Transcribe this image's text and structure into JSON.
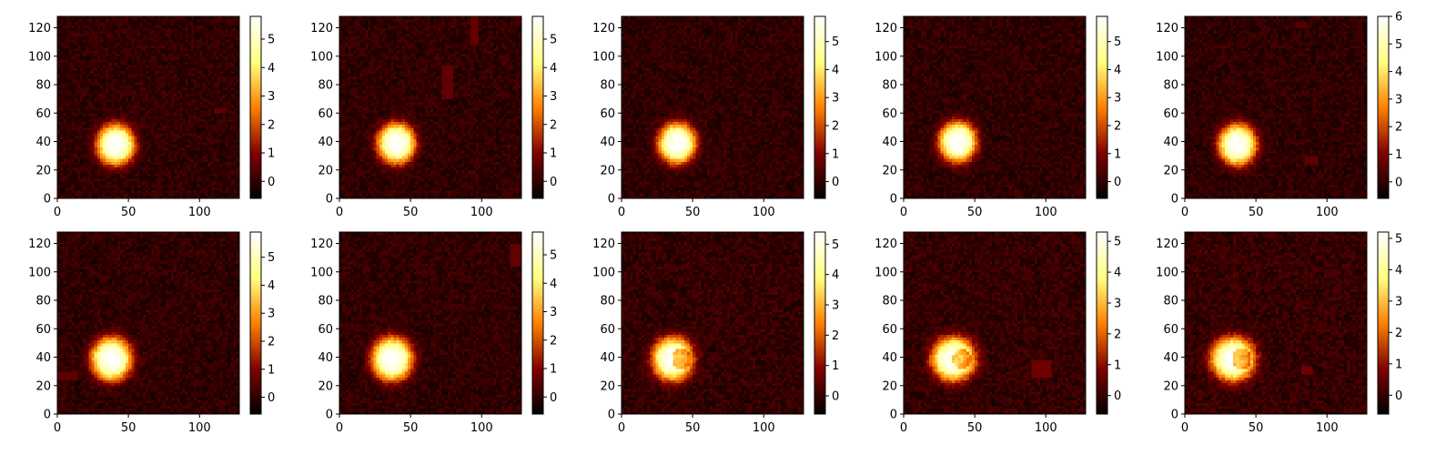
{
  "figure": {
    "rows": 2,
    "cols": 5,
    "colormap": "afmhot",
    "background": "#ffffff"
  },
  "chart_data": [
    {
      "type": "heatmap",
      "panel": 1,
      "xlim": [
        0,
        128
      ],
      "ylim": [
        0,
        128
      ],
      "x_ticks": [
        0,
        50,
        100
      ],
      "y_ticks": [
        0,
        20,
        40,
        60,
        80,
        100,
        120
      ],
      "grid": false,
      "colorbar": {
        "vmin": -0.6,
        "vmax": 5.8,
        "ticks": [
          0,
          1,
          2,
          3,
          4,
          5
        ]
      },
      "blob": {
        "cx": 41,
        "cy": 38,
        "sigma_x": 13,
        "sigma_y": 14,
        "peak": 5.8,
        "notch": false
      },
      "patches": [
        {
          "x": 110,
          "y": 60,
          "w": 7,
          "h": 4,
          "value": 0.6
        }
      ]
    },
    {
      "type": "heatmap",
      "panel": 2,
      "xlim": [
        0,
        128
      ],
      "ylim": [
        0,
        128
      ],
      "x_ticks": [
        0,
        50,
        100
      ],
      "y_ticks": [
        0,
        20,
        40,
        60,
        80,
        100,
        120
      ],
      "grid": false,
      "colorbar": {
        "vmin": -0.6,
        "vmax": 5.8,
        "ticks": [
          0,
          1,
          2,
          3,
          4,
          5
        ]
      },
      "blob": {
        "cx": 40,
        "cy": 39,
        "sigma_x": 13,
        "sigma_y": 14,
        "peak": 5.8,
        "notch": false
      },
      "patches": [
        {
          "x": 73,
          "y": 71,
          "w": 6,
          "h": 22,
          "value": 0.6
        },
        {
          "x": 93,
          "y": 109,
          "w": 4,
          "h": 18,
          "value": 0.6
        }
      ]
    },
    {
      "type": "heatmap",
      "panel": 3,
      "xlim": [
        0,
        128
      ],
      "ylim": [
        0,
        128
      ],
      "x_ticks": [
        0,
        50,
        100
      ],
      "y_ticks": [
        0,
        20,
        40,
        60,
        80,
        100,
        120
      ],
      "grid": false,
      "colorbar": {
        "vmin": -0.6,
        "vmax": 5.9,
        "ticks": [
          0,
          1,
          2,
          3,
          4,
          5
        ]
      },
      "blob": {
        "cx": 39,
        "cy": 39,
        "sigma_x": 13,
        "sigma_y": 14,
        "peak": 5.9,
        "notch": false
      },
      "patches": []
    },
    {
      "type": "heatmap",
      "panel": 4,
      "xlim": [
        0,
        128
      ],
      "ylim": [
        0,
        128
      ],
      "x_ticks": [
        0,
        50,
        100
      ],
      "y_ticks": [
        0,
        20,
        40,
        60,
        80,
        100,
        120
      ],
      "grid": false,
      "colorbar": {
        "vmin": -0.6,
        "vmax": 5.9,
        "ticks": [
          0,
          1,
          2,
          3,
          4,
          5
        ]
      },
      "blob": {
        "cx": 38,
        "cy": 40,
        "sigma_x": 13,
        "sigma_y": 14,
        "peak": 5.9,
        "notch": false
      },
      "patches": []
    },
    {
      "type": "heatmap",
      "panel": 5,
      "xlim": [
        0,
        128
      ],
      "ylim": [
        0,
        128
      ],
      "x_ticks": [
        0,
        50,
        100
      ],
      "y_ticks": [
        0,
        20,
        40,
        60,
        80,
        100,
        120
      ],
      "grid": false,
      "colorbar": {
        "vmin": -0.6,
        "vmax": 6.0,
        "ticks": [
          0,
          1,
          2,
          3,
          4,
          5,
          6
        ]
      },
      "blob": {
        "cx": 37,
        "cy": 38,
        "sigma_x": 13,
        "sigma_y": 14,
        "peak": 6.0,
        "notch": false
      },
      "patches": [
        {
          "x": 85,
          "y": 25,
          "w": 9,
          "h": 4,
          "value": 0.6
        },
        {
          "x": 78,
          "y": 120,
          "w": 8,
          "h": 4,
          "value": 0.5
        }
      ]
    },
    {
      "type": "heatmap",
      "panel": 6,
      "xlim": [
        0,
        128
      ],
      "ylim": [
        0,
        128
      ],
      "x_ticks": [
        0,
        50,
        100
      ],
      "y_ticks": [
        0,
        20,
        40,
        60,
        80,
        100,
        120
      ],
      "grid": false,
      "colorbar": {
        "vmin": -0.6,
        "vmax": 5.9,
        "ticks": [
          0,
          1,
          2,
          3,
          4,
          5
        ]
      },
      "blob": {
        "cx": 38,
        "cy": 39,
        "sigma_x": 14,
        "sigma_y": 15,
        "peak": 5.9,
        "notch": false
      },
      "patches": [
        {
          "x": 0,
          "y": 24,
          "w": 14,
          "h": 6,
          "value": 0.6
        }
      ]
    },
    {
      "type": "heatmap",
      "panel": 7,
      "xlim": [
        0,
        128
      ],
      "ylim": [
        0,
        128
      ],
      "x_ticks": [
        0,
        50,
        100
      ],
      "y_ticks": [
        0,
        20,
        40,
        60,
        80,
        100,
        120
      ],
      "grid": false,
      "colorbar": {
        "vmin": -0.6,
        "vmax": 5.8,
        "ticks": [
          0,
          1,
          2,
          3,
          4,
          5
        ]
      },
      "blob": {
        "cx": 37,
        "cy": 39,
        "sigma_x": 14,
        "sigma_y": 15,
        "peak": 5.8,
        "notch": false
      },
      "patches": [
        {
          "x": 120,
          "y": 105,
          "w": 8,
          "h": 15,
          "value": 0.6
        }
      ]
    },
    {
      "type": "heatmap",
      "panel": 8,
      "xlim": [
        0,
        128
      ],
      "ylim": [
        0,
        128
      ],
      "x_ticks": [
        0,
        50,
        100
      ],
      "y_ticks": [
        0,
        20,
        40,
        60,
        80,
        100,
        120
      ],
      "grid": false,
      "colorbar": {
        "vmin": -0.6,
        "vmax": 5.4,
        "ticks": [
          0,
          1,
          2,
          3,
          4,
          5
        ]
      },
      "blob": {
        "cx": 36,
        "cy": 39,
        "sigma_x": 14,
        "sigma_y": 15,
        "peak": 5.4,
        "notch": true
      },
      "patches": []
    },
    {
      "type": "heatmap",
      "panel": 9,
      "xlim": [
        0,
        128
      ],
      "ylim": [
        0,
        128
      ],
      "x_ticks": [
        0,
        50,
        100
      ],
      "y_ticks": [
        0,
        20,
        40,
        60,
        80,
        100,
        120
      ],
      "grid": false,
      "colorbar": {
        "vmin": -0.6,
        "vmax": 5.3,
        "ticks": [
          0,
          1,
          2,
          3,
          4,
          5
        ]
      },
      "blob": {
        "cx": 35,
        "cy": 39,
        "sigma_x": 15,
        "sigma_y": 15,
        "peak": 5.3,
        "notch": true
      },
      "patches": [
        {
          "x": 91,
          "y": 27,
          "w": 12,
          "h": 10,
          "value": 0.7
        }
      ]
    },
    {
      "type": "heatmap",
      "panel": 10,
      "xlim": [
        0,
        128
      ],
      "ylim": [
        0,
        128
      ],
      "x_ticks": [
        0,
        50,
        100
      ],
      "y_ticks": [
        0,
        20,
        40,
        60,
        80,
        100,
        120
      ],
      "grid": false,
      "colorbar": {
        "vmin": -0.6,
        "vmax": 5.2,
        "ticks": [
          0,
          1,
          2,
          3,
          4,
          5
        ]
      },
      "blob": {
        "cx": 34,
        "cy": 39,
        "sigma_x": 15,
        "sigma_y": 15,
        "peak": 5.2,
        "notch": true
      },
      "patches": [
        {
          "x": 83,
          "y": 28,
          "w": 6,
          "h": 5,
          "value": 0.7
        }
      ]
    }
  ]
}
